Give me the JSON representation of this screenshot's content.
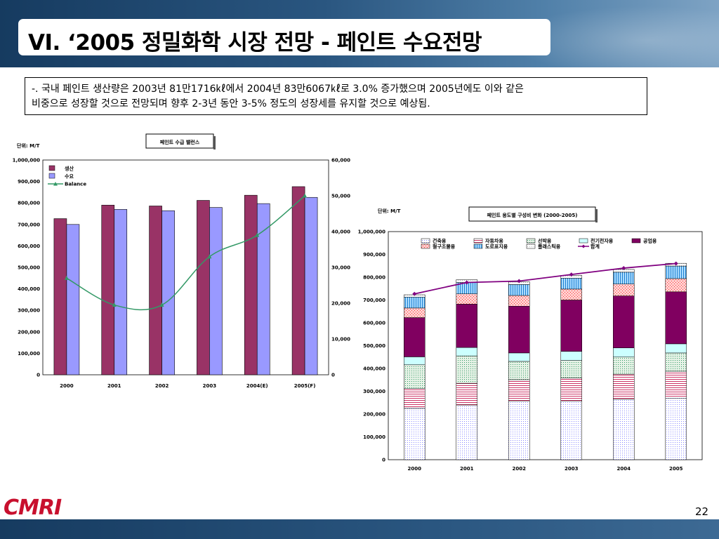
{
  "slide": {
    "title": "VI. ‘2005 정밀화학 시장 전망 - 페인트 수요전망",
    "description_line1": "-. 국내 페인트 생산량은 2003년 81만1716㎘에서 2004년 83만6067㎘로 3.0% 증가했으며 2005년에도 이와 같은",
    "description_line2": "비중으로 성장할 것으로 전망되며 향후 2-3년 동안 3-5% 정도의 성장세를 유지할 것으로 예상됨.",
    "logo_text": "CMRI",
    "page_number": "22"
  },
  "colors": {
    "banner": "#1e4670",
    "production": "#993366",
    "demand": "#9999ff",
    "balance": "#339966",
    "total_line": "#800080"
  },
  "chart_data": [
    {
      "type": "bar",
      "title": "페인트 수급 밸런스",
      "unit_label": "단위: M/T",
      "categories": [
        "2000",
        "2001",
        "2002",
        "2003",
        "2004(E)",
        "2005(F)"
      ],
      "ylim": [
        0,
        1000000
      ],
      "y_ticks": [
        "1,000,000",
        "900,000",
        "800,000",
        "700,000",
        "600,000",
        "500,000",
        "400,000",
        "300,000",
        "200,000",
        "100,000",
        "0"
      ],
      "y2lim": [
        0,
        60000
      ],
      "y2_ticks": [
        "60,000",
        "50,000",
        "40,000",
        "30,000",
        "20,000",
        "10,000",
        "0"
      ],
      "series": [
        {
          "name": "생산",
          "axis": "left",
          "kind": "bar",
          "color": "#993366",
          "values": [
            727000,
            790000,
            786000,
            812000,
            836000,
            876000
          ]
        },
        {
          "name": "수요",
          "axis": "left",
          "kind": "bar",
          "color": "#9999ff",
          "values": [
            700000,
            770000,
            764000,
            779000,
            797000,
            826000
          ]
        },
        {
          "name": "Balance",
          "axis": "right",
          "kind": "line",
          "color": "#339966",
          "values": [
            27000,
            19500,
            19500,
            33000,
            39000,
            50000
          ]
        }
      ],
      "legend_position": "top-left"
    },
    {
      "type": "bar",
      "stacked": true,
      "title": "페인트 용도별 구성비 변화 (2000-2005)",
      "unit_label": "단위: M/T",
      "categories": [
        "2000",
        "2001",
        "2002",
        "2003",
        "2004",
        "2005"
      ],
      "ylim": [
        0,
        1000000
      ],
      "y_ticks": [
        "1,000,000",
        "900,000",
        "800,000",
        "700,000",
        "600,000",
        "500,000",
        "400,000",
        "300,000",
        "200,000",
        "100,000",
        "0"
      ],
      "series": [
        {
          "name": "건축용",
          "color": "#ccccff",
          "values": [
            225000,
            240000,
            258000,
            258000,
            265000,
            270000
          ]
        },
        {
          "name": "자동차용",
          "color": "#cc6699",
          "values": [
            88000,
            95000,
            93000,
            100000,
            110000,
            118000
          ]
        },
        {
          "name": "선박용",
          "color": "#99cc99",
          "values": [
            103000,
            120000,
            80000,
            77000,
            75000,
            80000
          ]
        },
        {
          "name": "전기전자용",
          "color": "#ccffff",
          "values": [
            35000,
            37000,
            37000,
            40000,
            40000,
            40000
          ]
        },
        {
          "name": "공업용",
          "color": "#800060",
          "values": [
            172000,
            190000,
            205000,
            225000,
            228000,
            228000
          ]
        },
        {
          "name": "철구조물용",
          "color": "#ff9999",
          "values": [
            42000,
            45000,
            47000,
            48000,
            52000,
            58000
          ]
        },
        {
          "name": "도로표지용",
          "color": "#66ccff",
          "values": [
            48000,
            50000,
            48000,
            48000,
            52000,
            55000
          ]
        },
        {
          "name": "플래스틱용",
          "color": "#f2f2f2",
          "values": [
            10000,
            12000,
            12000,
            12000,
            12000,
            12000
          ]
        }
      ],
      "line": {
        "name": "합계",
        "color": "#800080",
        "values": [
          727000,
          777000,
          783000,
          812000,
          840000,
          860000
        ]
      },
      "legend_position": "top"
    }
  ]
}
